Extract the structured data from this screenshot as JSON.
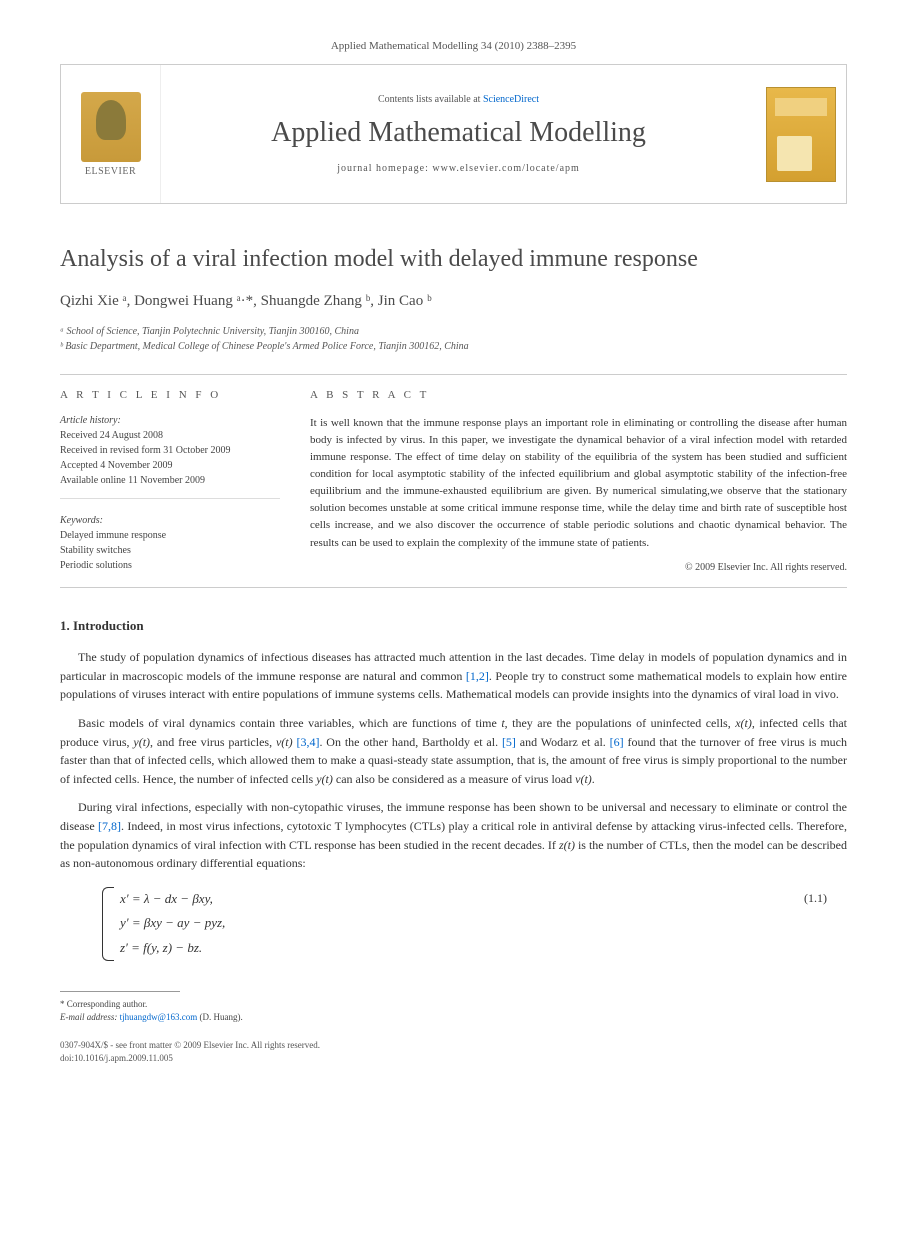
{
  "journal_ref": "Applied Mathematical Modelling 34 (2010) 2388–2395",
  "header": {
    "contents_prefix": "Contents lists available at ",
    "contents_link": "ScienceDirect",
    "journal_title": "Applied Mathematical Modelling",
    "homepage_label": "journal homepage: www.elsevier.com/locate/apm",
    "publisher": "ELSEVIER"
  },
  "article": {
    "title": "Analysis of a viral infection model with delayed immune response",
    "authors_html": "Qizhi Xie ᵃ, Dongwei Huang ᵃ·*, Shuangde Zhang ᵇ, Jin Cao ᵇ",
    "affiliations": [
      "ᵃ School of Science, Tianjin Polytechnic University, Tianjin 300160, China",
      "ᵇ Basic Department, Medical College of Chinese People's Armed Police Force, Tianjin 300162, China"
    ]
  },
  "info": {
    "heading": "A R T I C L E   I N F O",
    "history_label": "Article history:",
    "history": [
      "Received 24 August 2008",
      "Received in revised form 31 October 2009",
      "Accepted 4 November 2009",
      "Available online 11 November 2009"
    ],
    "keywords_label": "Keywords:",
    "keywords": [
      "Delayed immune response",
      "Stability switches",
      "Periodic solutions"
    ]
  },
  "abstract": {
    "heading": "A B S T R A C T",
    "text": "It is well known that the immune response plays an important role in eliminating or controlling the disease after human body is infected by virus. In this paper, we investigate the dynamical behavior of a viral infection model with retarded immune response. The effect of time delay on stability of the equilibria of the system has been studied and sufficient condition for local asymptotic stability of the infected equilibrium and global asymptotic stability of the infection-free equilibrium and the immune-exhausted equilibrium are given. By numerical simulating,we observe that the stationary solution becomes unstable at some critical immune response time, while the delay time and birth rate of susceptible host cells increase, and we also discover the occurrence of stable periodic solutions and chaotic dynamical behavior. The results can be used to explain the complexity of the immune state of patients.",
    "copyright": "© 2009 Elsevier Inc. All rights reserved."
  },
  "sections": {
    "intro_heading": "1. Introduction",
    "p1_a": "The study of population dynamics of infectious diseases has attracted much attention in the last decades. Time delay in models of population dynamics and in particular in macroscopic models of the immune response are natural and common ",
    "p1_ref1": "[1,2]",
    "p1_b": ". People try to construct some mathematical models to explain how entire populations of viruses interact with entire populations of immune systems cells. Mathematical models can provide insights into the dynamics of viral load in vivo.",
    "p2_a": "Basic models of viral dynamics contain three variables, which are functions of time ",
    "p2_b": ", they are the populations of uninfected cells, ",
    "p2_c": ", infected cells that produce virus, ",
    "p2_d": ", and free virus particles, ",
    "p2_ref34": "[3,4]",
    "p2_e": ". On the other hand, Bartholdy et al. ",
    "p2_ref5": "[5]",
    "p2_f": " and Wodarz et al. ",
    "p2_ref6": "[6]",
    "p2_g": " found that the turnover of free virus is much faster than that of infected cells, which allowed them to make a quasi-steady state assumption, that is, the amount of free virus is simply proportional to the number of infected cells. Hence, the number of infected cells ",
    "p2_h": " can also be considered as a measure of virus load ",
    "p3_a": "During viral infections, especially with non-cytopathic viruses, the immune response has been shown to be universal and necessary to eliminate or control the disease ",
    "p3_ref78": "[7,8]",
    "p3_b": ". Indeed, in most virus infections, cytotoxic T lymphocytes (CTLs) play a critical role in antiviral defense by attacking virus-infected cells. Therefore, the population dynamics of viral infection with CTL response has been studied in the recent decades. If ",
    "p3_c": " is the number of CTLs, then the model can be described as non-autonomous ordinary differential equations:"
  },
  "equations": {
    "eq1": "x′ = λ − dx − βxy,",
    "eq2": "y′ = βxy − ay − pyz,",
    "eq3": "z′ = f(y, z) − bz.",
    "num": "(1.1)"
  },
  "footnote": {
    "corr": "* Corresponding author.",
    "email_label": "E-mail address: ",
    "email": "tjhuangdw@163.com",
    "email_who": " (D. Huang)."
  },
  "footer": {
    "line1": "0307-904X/$ - see front matter © 2009 Elsevier Inc. All rights reserved.",
    "line2": "doi:10.1016/j.apm.2009.11.005"
  },
  "colors": {
    "link": "#0066cc",
    "text": "#333333",
    "muted": "#555555",
    "rule": "#cccccc",
    "elsevier_gold": "#d4a84a"
  }
}
